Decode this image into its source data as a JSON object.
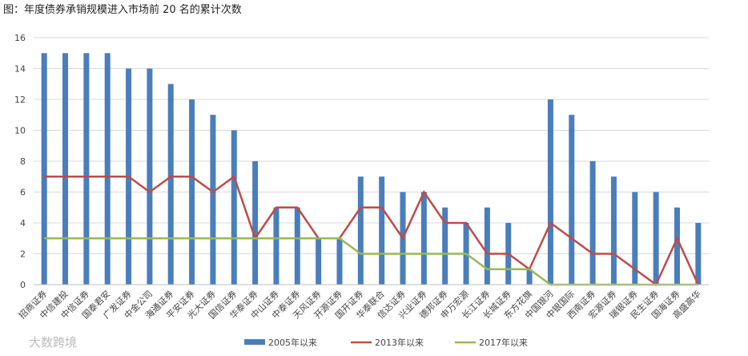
{
  "chart_data": {
    "type": "bar-line",
    "title": "图：年度债券承销规模进入市场前 20 名的累计次数",
    "watermark": "大数跨境",
    "categories": [
      "招商证券",
      "中信建投",
      "中信证券",
      "国泰君安",
      "广发证券",
      "中金公司",
      "海通证券",
      "平安证券",
      "光大证券",
      "国信证券",
      "华泰证券",
      "中山证券",
      "中泰证券",
      "天风证券",
      "开源证券",
      "国开证券",
      "华泰联合",
      "信达证券",
      "兴业证券",
      "德邦证券",
      "申万宏源",
      "长江证券",
      "长城证券",
      "东方花旗",
      "中国银河",
      "中银国际",
      "西南证券",
      "宏源证券",
      "瑞银证券",
      "民生证券",
      "国海证券",
      "高盛高华"
    ],
    "series": [
      {
        "name": "2005年以来",
        "kind": "bar",
        "color": "#4a7ebb",
        "values": [
          15,
          15,
          15,
          15,
          14,
          14,
          13,
          12,
          11,
          10,
          8,
          5,
          5,
          3,
          3,
          7,
          7,
          6,
          6,
          5,
          4,
          5,
          4,
          1,
          12,
          11,
          8,
          7,
          6,
          6,
          5,
          4
        ]
      },
      {
        "name": "2013年以来",
        "kind": "line",
        "color": "#be4b48",
        "values": [
          7,
          7,
          7,
          7,
          7,
          6,
          7,
          7,
          6,
          7,
          3,
          5,
          5,
          3,
          3,
          5,
          5,
          3,
          6,
          4,
          4,
          2,
          2,
          1,
          4,
          3,
          2,
          2,
          1,
          0,
          3,
          0
        ]
      },
      {
        "name": "2017年以来",
        "kind": "line",
        "color": "#98b954",
        "values": [
          3,
          3,
          3,
          3,
          3,
          3,
          3,
          3,
          3,
          3,
          3,
          3,
          3,
          3,
          3,
          2,
          2,
          2,
          2,
          2,
          2,
          1,
          1,
          1,
          0,
          0,
          0,
          0,
          0,
          0,
          0,
          0
        ]
      }
    ],
    "ylim": [
      0,
      16
    ],
    "yticks": [
      0,
      2,
      4,
      6,
      8,
      10,
      12,
      14,
      16
    ],
    "grid": true,
    "legend": "bottom"
  }
}
